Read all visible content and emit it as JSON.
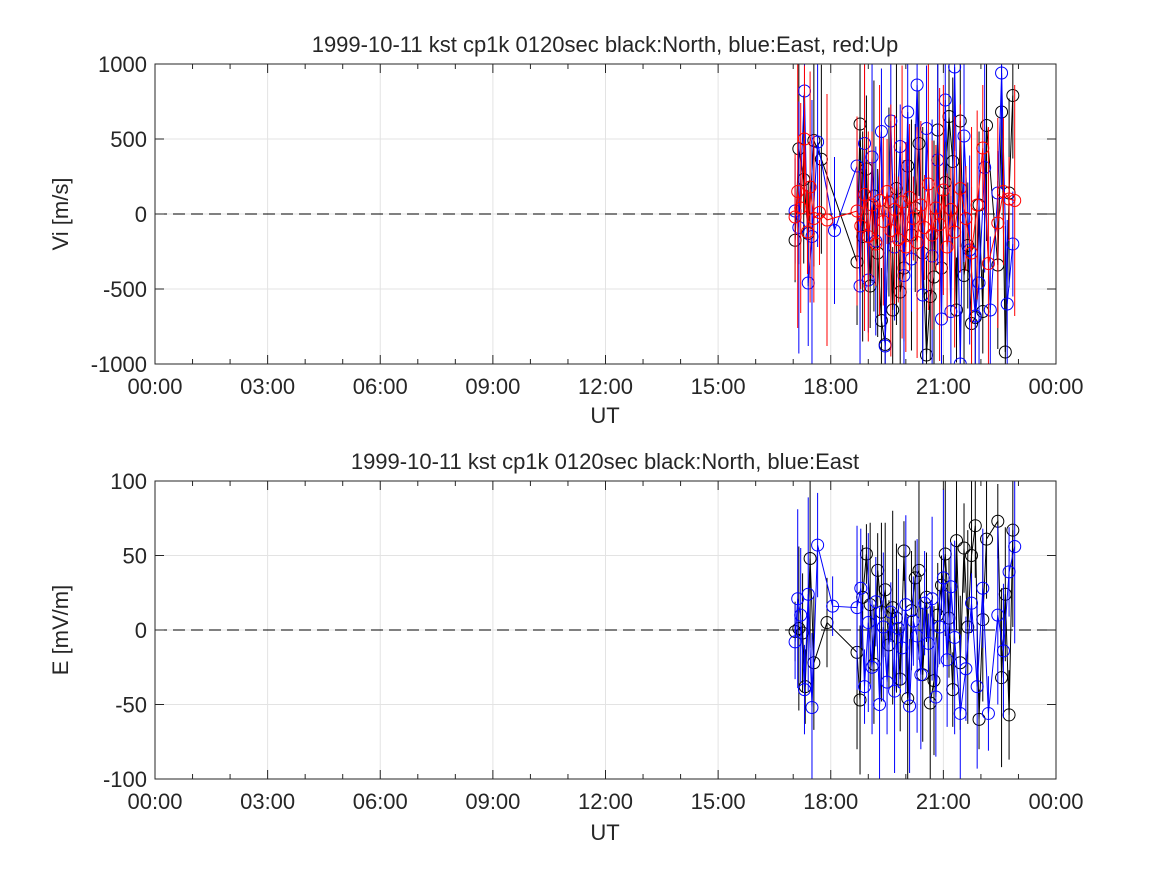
{
  "chart_data": [
    {
      "type": "scatter",
      "title": "1999-10-11 kst cp1k 0120sec black:North, blue:East, red:Up",
      "xlabel": "UT",
      "ylabel": "Vi [m/s]",
      "xlim": [
        0,
        24
      ],
      "ylim": [
        -1000,
        1000
      ],
      "xticks": [
        "00:00",
        "03:00",
        "06:00",
        "09:00",
        "12:00",
        "15:00",
        "18:00",
        "21:00",
        "00:00"
      ],
      "yticks": [
        "-1000",
        "-500",
        "0",
        "500",
        "1000"
      ],
      "grid": true,
      "zero_line": "dashed",
      "series": [
        {
          "name": "North",
          "color": "#000000",
          "x": [
            17.05,
            17.15,
            17.28,
            17.4,
            17.55,
            17.75,
            18.7,
            18.78,
            18.85,
            18.95,
            19.05,
            19.15,
            19.25,
            19.35,
            19.45,
            19.55,
            19.65,
            19.75,
            19.85,
            19.95,
            20.05,
            20.15,
            20.25,
            20.35,
            20.45,
            20.55,
            20.65,
            20.75,
            20.85,
            20.95,
            21.05,
            21.15,
            21.25,
            21.35,
            21.45,
            21.55,
            21.65,
            21.75,
            21.85,
            21.95,
            22.05,
            22.15,
            22.45,
            22.55,
            22.65,
            22.75,
            22.85
          ],
          "y": [
            -175,
            435,
            230,
            -130,
            490,
            365,
            -320,
            600,
            -150,
            300,
            -480,
            120,
            -260,
            -710,
            -870,
            80,
            -640,
            170,
            -520,
            -360,
            320,
            -140,
            40,
            470,
            -260,
            -940,
            -550,
            -420,
            560,
            -360,
            210,
            650,
            350,
            -640,
            620,
            -410,
            -210,
            -730,
            -690,
            60,
            -650,
            590,
            -340,
            680,
            -920,
            140,
            790
          ]
        },
        {
          "name": "East",
          "color": "#0000ff",
          "x": [
            17.05,
            17.15,
            17.3,
            17.4,
            17.5,
            17.65,
            18.1,
            18.7,
            18.78,
            18.9,
            19.0,
            19.1,
            19.2,
            19.35,
            19.45,
            19.6,
            19.7,
            19.85,
            19.95,
            20.05,
            20.15,
            20.3,
            20.45,
            20.55,
            20.7,
            20.85,
            20.95,
            21.05,
            21.2,
            21.3,
            21.45,
            21.55,
            21.7,
            21.85,
            21.95,
            22.1,
            22.25,
            22.45,
            22.55,
            22.7,
            22.85
          ],
          "y": [
            20,
            -90,
            820,
            -460,
            -150,
            480,
            -110,
            320,
            -480,
            470,
            -440,
            380,
            -180,
            550,
            -880,
            620,
            -220,
            450,
            -410,
            680,
            -300,
            860,
            -540,
            570,
            -280,
            360,
            -700,
            760,
            -650,
            980,
            -1000,
            520,
            -240,
            -680,
            -460,
            310,
            -640,
            140,
            940,
            -600,
            -200
          ]
        },
        {
          "name": "Up",
          "color": "#ff0000",
          "x": [
            17.05,
            17.12,
            17.2,
            17.3,
            17.38,
            17.45,
            17.55,
            17.7,
            17.9,
            18.7,
            18.8,
            18.9,
            19.0,
            19.1,
            19.2,
            19.3,
            19.4,
            19.5,
            19.6,
            19.7,
            19.8,
            19.9,
            20.0,
            20.1,
            20.2,
            20.3,
            20.4,
            20.5,
            20.6,
            20.7,
            20.8,
            20.9,
            21.0,
            21.1,
            21.2,
            21.3,
            21.45,
            21.6,
            21.75,
            21.9,
            22.05,
            22.2,
            22.45,
            22.6,
            22.75,
            22.9
          ],
          "y": [
            -20,
            150,
            40,
            500,
            -120,
            180,
            -30,
            10,
            -40,
            20,
            -80,
            130,
            -150,
            60,
            -200,
            90,
            -50,
            150,
            -110,
            30,
            -170,
            80,
            -220,
            110,
            -30,
            -190,
            60,
            -90,
            200,
            -140,
            40,
            -70,
            160,
            -220,
            30,
            -120,
            170,
            -30,
            -260,
            60,
            440,
            -330,
            -60,
            150,
            100,
            90
          ]
        }
      ]
    },
    {
      "type": "scatter",
      "title": "1999-10-11 kst cp1k 0120sec black:North, blue:East",
      "xlabel": "UT",
      "ylabel": "E [mV/m]",
      "xlim": [
        0,
        24
      ],
      "ylim": [
        -100,
        100
      ],
      "xticks": [
        "00:00",
        "03:00",
        "06:00",
        "09:00",
        "12:00",
        "15:00",
        "18:00",
        "21:00",
        "00:00"
      ],
      "yticks": [
        "-100",
        "-50",
        "0",
        "50",
        "100"
      ],
      "grid": true,
      "zero_line": "dashed",
      "series": [
        {
          "name": "North",
          "color": "#000000",
          "x": [
            17.05,
            17.15,
            17.25,
            17.32,
            17.45,
            17.55,
            17.9,
            18.7,
            18.78,
            18.85,
            18.95,
            19.05,
            19.15,
            19.25,
            19.35,
            19.45,
            19.55,
            19.65,
            19.75,
            19.85,
            19.95,
            20.05,
            20.15,
            20.25,
            20.35,
            20.45,
            20.55,
            20.65,
            20.75,
            20.85,
            20.95,
            21.05,
            21.15,
            21.25,
            21.35,
            21.45,
            21.55,
            21.65,
            21.75,
            21.85,
            21.95,
            22.05,
            22.15,
            22.45,
            22.55,
            22.65,
            22.75,
            22.85
          ],
          "y": [
            -1,
            1,
            -2,
            -38,
            48,
            -22,
            5,
            -15,
            -47,
            22,
            51,
            17,
            -23,
            40,
            12,
            27,
            -10,
            15,
            8,
            -33,
            53,
            -46,
            13,
            35,
            40,
            -30,
            22,
            -49,
            -34,
            10,
            30,
            51,
            8,
            -40,
            60,
            -22,
            55,
            2,
            50,
            70,
            -60,
            7,
            61,
            73,
            -32,
            24,
            -57,
            67
          ]
        },
        {
          "name": "East",
          "color": "#0000ff",
          "x": [
            17.05,
            17.12,
            17.2,
            17.3,
            17.4,
            17.5,
            17.65,
            18.05,
            18.7,
            18.8,
            18.9,
            19.0,
            19.1,
            19.2,
            19.3,
            19.4,
            19.5,
            19.6,
            19.7,
            19.8,
            19.9,
            20.0,
            20.1,
            20.2,
            20.3,
            20.4,
            20.5,
            20.6,
            20.7,
            20.8,
            20.9,
            21.0,
            21.1,
            21.2,
            21.3,
            21.45,
            21.6,
            21.75,
            21.9,
            22.05,
            22.2,
            22.45,
            22.6,
            22.75,
            22.9
          ],
          "y": [
            -8,
            21,
            10,
            -40,
            24,
            -52,
            57,
            16,
            15,
            28,
            -38,
            5,
            -25,
            19,
            -50,
            2,
            -35,
            12,
            -41,
            1,
            -12,
            17,
            -51,
            6,
            -4,
            -30,
            18,
            -9,
            21,
            -45,
            2,
            35,
            -20,
            29,
            -5,
            -56,
            -26,
            18,
            -38,
            28,
            -56,
            10,
            -14,
            39,
            56
          ]
        }
      ]
    }
  ]
}
